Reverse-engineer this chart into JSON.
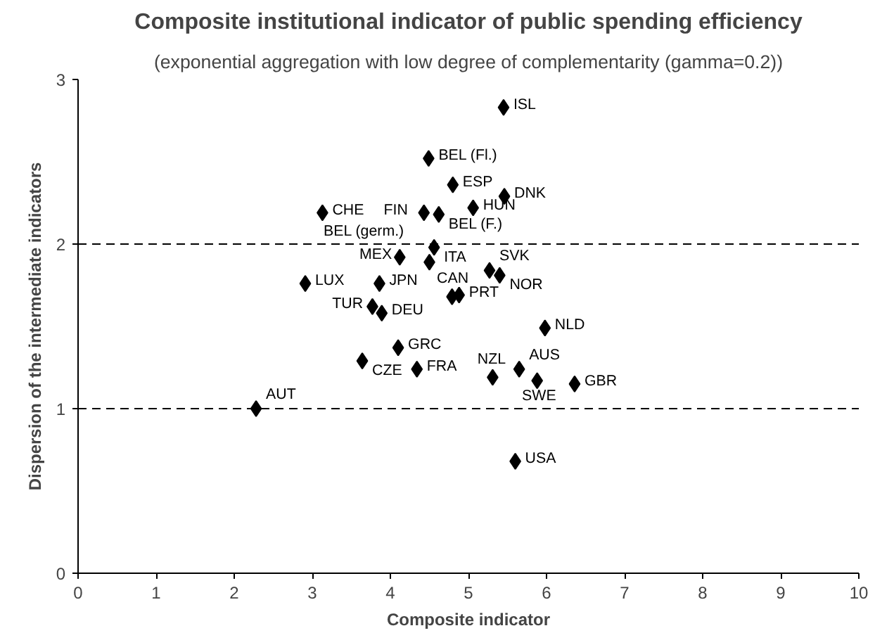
{
  "chart_data": {
    "type": "scatter",
    "title": "Composite institutional indicator of public spending efficiency",
    "subtitle": "(exponential aggregation with low degree of complementarity (gamma=0.2))",
    "xlabel": "Composite indicator",
    "ylabel": "Dispersion of the intermediate indicators",
    "x": [
      5.45,
      4.49,
      4.8,
      5.46,
      3.13,
      4.43,
      4.62,
      5.06,
      4.56,
      4.12,
      4.5,
      5.27,
      5.4,
      2.91,
      3.86,
      4.79,
      4.88,
      3.77,
      3.89,
      5.98,
      3.64,
      4.1,
      4.34,
      5.65,
      5.31,
      5.88,
      6.36,
      2.28,
      5.6
    ],
    "series": [
      {
        "color": "#000000",
        "values": [
          2.83,
          2.52,
          2.36,
          2.29,
          2.19,
          2.19,
          2.18,
          2.22,
          1.98,
          1.92,
          1.89,
          1.84,
          1.81,
          1.76,
          1.76,
          1.68,
          1.69,
          1.62,
          1.58,
          1.49,
          1.29,
          1.37,
          1.24,
          1.24,
          1.19,
          1.17,
          1.15,
          1.0,
          0.68
        ]
      }
    ],
    "annotations": [
      {
        "text": "ISL",
        "x": 5.45,
        "y": 2.83
      },
      {
        "text": "BEL (Fl.)",
        "x": 4.49,
        "y": 2.52
      },
      {
        "text": "ESP",
        "x": 4.8,
        "y": 2.36
      },
      {
        "text": "DNK",
        "x": 5.46,
        "y": 2.29
      },
      {
        "text": "CHE",
        "x": 3.13,
        "y": 2.19
      },
      {
        "text": "FIN",
        "x": 4.43,
        "y": 2.19
      },
      {
        "text": "BEL (F.)",
        "x": 4.62,
        "y": 2.18
      },
      {
        "text": "HUN",
        "x": 5.06,
        "y": 2.22
      },
      {
        "text": "ITA",
        "x": 4.56,
        "y": 1.98
      },
      {
        "text": "MEX",
        "x": 4.12,
        "y": 1.92
      },
      {
        "text": "BEL (germ.)",
        "x": 4.5,
        "y": 1.89
      },
      {
        "text": "SVK",
        "x": 5.27,
        "y": 1.84
      },
      {
        "text": "NOR",
        "x": 5.4,
        "y": 1.81
      },
      {
        "text": "LUX",
        "x": 2.91,
        "y": 1.76
      },
      {
        "text": "JPN",
        "x": 3.86,
        "y": 1.76
      },
      {
        "text": "CAN",
        "x": 4.79,
        "y": 1.68
      },
      {
        "text": "PRT",
        "x": 4.88,
        "y": 1.69
      },
      {
        "text": "TUR",
        "x": 3.77,
        "y": 1.62
      },
      {
        "text": "DEU",
        "x": 3.89,
        "y": 1.58
      },
      {
        "text": "NLD",
        "x": 5.98,
        "y": 1.49
      },
      {
        "text": "CZE",
        "x": 3.64,
        "y": 1.29
      },
      {
        "text": "GRC",
        "x": 4.1,
        "y": 1.37
      },
      {
        "text": "FRA",
        "x": 4.34,
        "y": 1.24
      },
      {
        "text": "AUS",
        "x": 5.65,
        "y": 1.24
      },
      {
        "text": "NZL",
        "x": 5.31,
        "y": 1.19
      },
      {
        "text": "SWE",
        "x": 5.88,
        "y": 1.17
      },
      {
        "text": "GBR",
        "x": 6.36,
        "y": 1.15
      },
      {
        "text": "AUT",
        "x": 2.28,
        "y": 1.0
      },
      {
        "text": "USA",
        "x": 5.6,
        "y": 0.68
      }
    ],
    "xlim": [
      0,
      10
    ],
    "xticks": [
      0,
      1,
      2,
      3,
      4,
      5,
      6,
      7,
      8,
      9,
      10
    ],
    "ylim": [
      0,
      3
    ],
    "yticks": [
      0,
      1,
      2,
      3
    ],
    "grid": "y",
    "marker": "diamond"
  }
}
